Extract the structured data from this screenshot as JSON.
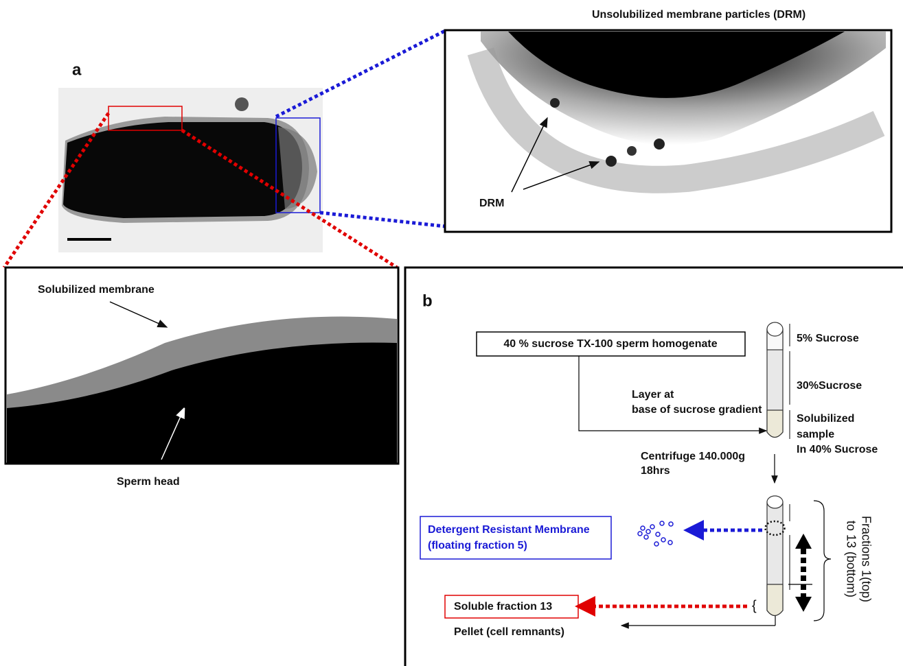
{
  "panel_a": {
    "label": "a",
    "drm_zoom_title": "Unsolubilized membrane particles (DRM)",
    "drm_zoom_annotation": "DRM",
    "membrane_zoom_annotation": "Solubilized membrane",
    "head_zoom_annotation": "Sperm head"
  },
  "panel_b": {
    "label": "b",
    "homogenate": "40 % sucrose TX-100 sperm homogenate",
    "layer_note": [
      "Layer at",
      "base of sucrose gradient"
    ],
    "tube_labels": [
      "5% Sucrose",
      "30%Sucrose",
      "Solubilized",
      "sample",
      "In 40%  Sucrose"
    ],
    "centrifuge": [
      "Centrifuge 140.000g",
      "18hrs"
    ],
    "fractions": [
      "Fractions 1(top)",
      "to 13 (bottom)"
    ],
    "drm_box": [
      "Detergent Resistant Membrane",
      "(floating fraction 5)"
    ],
    "soluble_box": "Soluble fraction 13",
    "pellet": "Pellet (cell remnants)"
  }
}
